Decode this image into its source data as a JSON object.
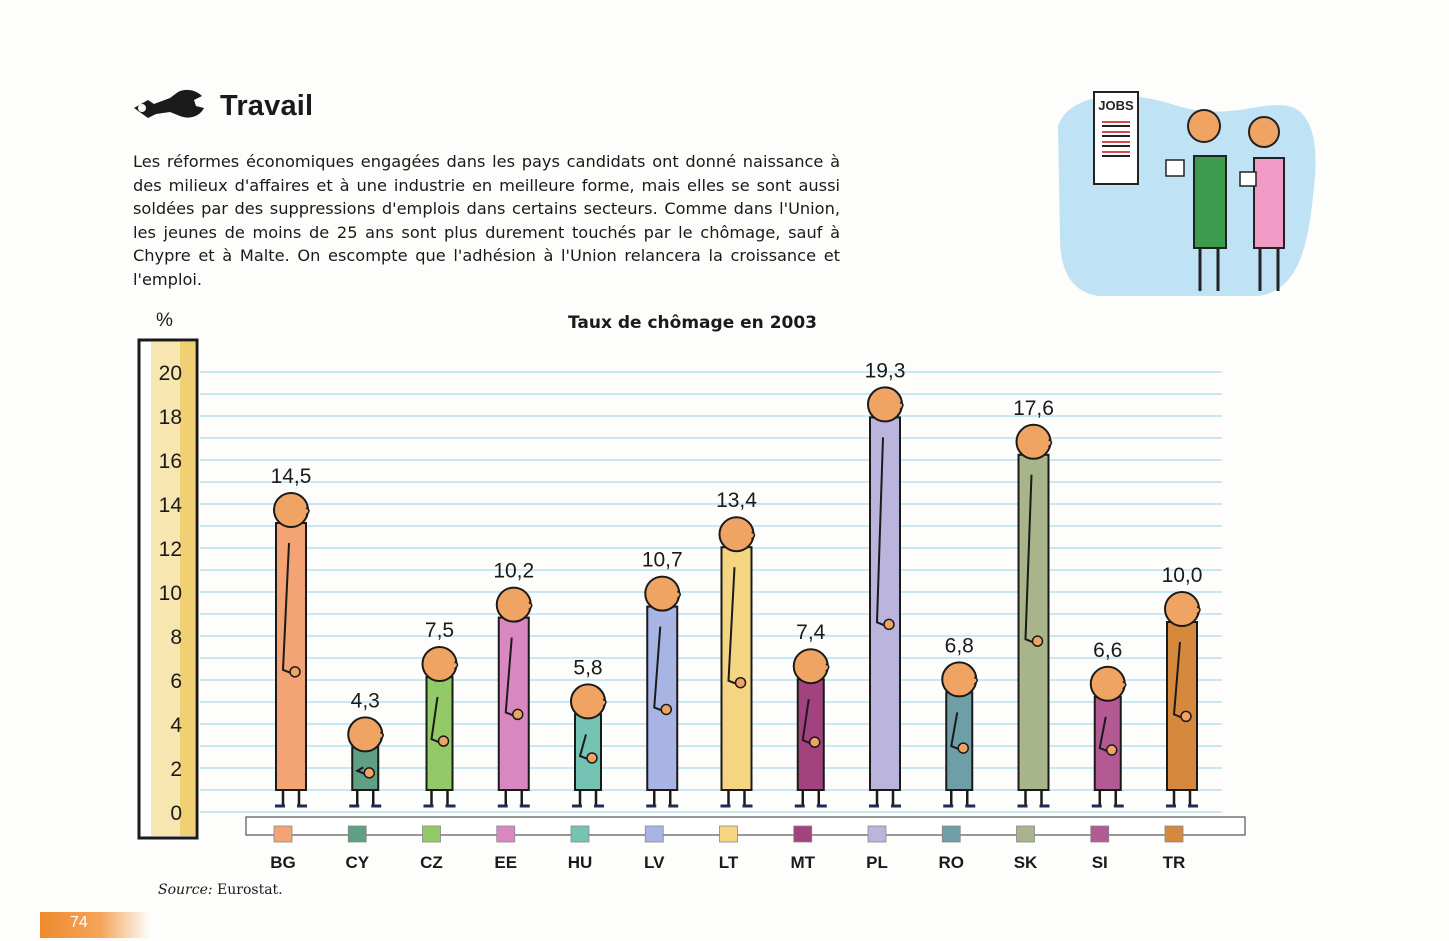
{
  "header": {
    "title": "Travail",
    "intro": "Les réformes économiques engagées dans les pays candidats ont donné naissance à des milieux d'affaires et à une industrie en meilleure forme, mais elles se sont aussi soldées par des suppressions d'emplois dans certains secteurs. Comme dans l'Union, les jeunes de moins de 25 ans sont plus durement touchés par le chômage, sauf à Chypre et à Malte. On escompte que l'adhésion à l'Union relancera la croissance et l'emploi."
  },
  "illustration": {
    "sign_text": "JOBS"
  },
  "chart_data": {
    "type": "bar",
    "title": "Taux de chômage en 2003",
    "ylabel": "%",
    "ylim": [
      0,
      20
    ],
    "yticks": [
      0,
      2,
      4,
      6,
      8,
      10,
      12,
      14,
      16,
      18,
      20
    ],
    "grid": true,
    "categories": [
      "BG",
      "CY",
      "CZ",
      "EE",
      "HU",
      "LV",
      "LT",
      "MT",
      "PL",
      "RO",
      "SK",
      "SI",
      "TR"
    ],
    "values": [
      14.5,
      4.3,
      7.5,
      10.2,
      5.8,
      10.7,
      13.4,
      7.4,
      19.3,
      6.8,
      17.6,
      6.6,
      10.0
    ],
    "value_labels": [
      "14,5",
      "4,3",
      "7,5",
      "10,2",
      "5,8",
      "10,7",
      "13,4",
      "7,4",
      "19,3",
      "6,8",
      "17,6",
      "6,6",
      "10,0"
    ],
    "colors": [
      "#f4a374",
      "#5f9f83",
      "#93c966",
      "#d987c0",
      "#75c4b3",
      "#a7b4e4",
      "#f6d582",
      "#a2427f",
      "#bbb4dc",
      "#6f9fa6",
      "#a8b489",
      "#b35a94",
      "#d6883d"
    ]
  },
  "source": {
    "label": "Source:",
    "text": "Eurostat."
  },
  "page": {
    "number": "74"
  }
}
